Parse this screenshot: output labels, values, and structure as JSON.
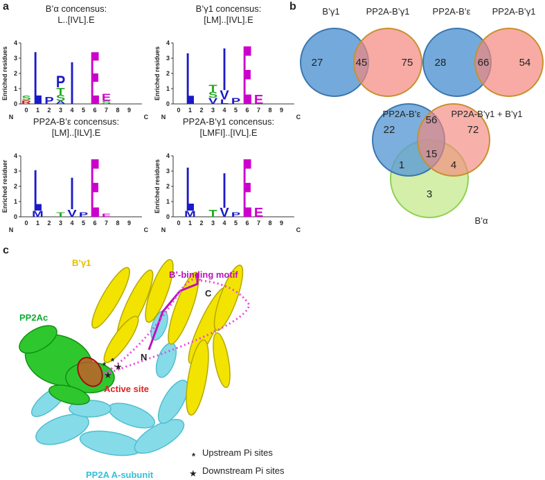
{
  "panel_a": {
    "label": "a",
    "y_ticks": [
      0,
      1,
      2,
      3,
      4
    ],
    "positions": [
      0,
      1,
      2,
      3,
      4,
      5,
      6,
      7,
      8,
      9
    ],
    "n_label": "N",
    "c_label": "C",
    "logos": [
      {
        "title": "B’α concensus:",
        "motif": "L..[IVL].E",
        "ylabel": "Enriched residues",
        "letters": [
          {
            "letter": "R",
            "position": 0,
            "height": 0.25,
            "color": "#d02020"
          },
          {
            "letter": "S",
            "position": 0,
            "height": 0.3,
            "color": "#22aa22"
          },
          {
            "letter": "L",
            "position": 1,
            "height": 3.6,
            "color": "#1a1ac8"
          },
          {
            "letter": "P",
            "position": 2,
            "height": 0.5,
            "color": "#1a1ac8"
          },
          {
            "letter": "A",
            "position": 3,
            "height": 0.2,
            "color": "#1a1ac8"
          },
          {
            "letter": "S",
            "position": 3,
            "height": 0.4,
            "color": "#22aa22"
          },
          {
            "letter": "T",
            "position": 3,
            "height": 0.5,
            "color": "#22aa22"
          },
          {
            "letter": "P",
            "position": 3,
            "height": 0.8,
            "color": "#1a1ac8"
          },
          {
            "letter": "I",
            "position": 4,
            "height": 2.9,
            "color": "#1a1ac8"
          },
          {
            "letter": "E",
            "position": 6,
            "height": 3.6,
            "color": "#cc00cc"
          },
          {
            "letter": "S",
            "position": 7,
            "height": 0.2,
            "color": "#22aa22"
          },
          {
            "letter": "E",
            "position": 7,
            "height": 0.5,
            "color": "#cc00cc"
          }
        ]
      },
      {
        "title": "B’γ1 concensus:",
        "motif": "[LM]..[IVL].E",
        "ylabel": "Enriched residues",
        "letters": [
          {
            "letter": "L",
            "position": 1,
            "height": 3.5,
            "color": "#1a1ac8"
          },
          {
            "letter": "V",
            "position": 3,
            "height": 0.4,
            "color": "#1a1ac8"
          },
          {
            "letter": "S",
            "position": 3,
            "height": 0.4,
            "color": "#22aa22"
          },
          {
            "letter": "T",
            "position": 3,
            "height": 0.5,
            "color": "#22aa22"
          },
          {
            "letter": "L",
            "position": 4,
            "height": 0.3,
            "color": "#1a1ac8"
          },
          {
            "letter": "V",
            "position": 4,
            "height": 0.6,
            "color": "#1a1ac8"
          },
          {
            "letter": "I",
            "position": 4,
            "height": 2.9,
            "color": "#1a1ac8"
          },
          {
            "letter": "P",
            "position": 5,
            "height": 0.4,
            "color": "#1a1ac8"
          },
          {
            "letter": "E",
            "position": 6,
            "height": 4.0,
            "color": "#cc00cc"
          },
          {
            "letter": "E",
            "position": 7,
            "height": 0.6,
            "color": "#cc00cc"
          }
        ]
      },
      {
        "title": "PP2A-B’ε concensus:",
        "motif": "[LM]..[ILV].E",
        "ylabel": "Enriched residuer",
        "letters": [
          {
            "letter": "M",
            "position": 1,
            "height": 0.4,
            "color": "#1a1ac8"
          },
          {
            "letter": "L",
            "position": 1,
            "height": 2.8,
            "color": "#1a1ac8"
          },
          {
            "letter": "T",
            "position": 3,
            "height": 0.3,
            "color": "#22aa22"
          },
          {
            "letter": "V",
            "position": 4,
            "height": 0.5,
            "color": "#1a1ac8"
          },
          {
            "letter": "I",
            "position": 4,
            "height": 2.2,
            "color": "#1a1ac8"
          },
          {
            "letter": "P",
            "position": 5,
            "height": 0.3,
            "color": "#1a1ac8"
          },
          {
            "letter": "E",
            "position": 6,
            "height": 4.0,
            "color": "#cc00cc"
          },
          {
            "letter": "E",
            "position": 7,
            "height": 0.2,
            "color": "#cc00cc"
          }
        ]
      },
      {
        "title": "PP2A-B’γ1 concensus:",
        "motif": "[LMFI]..[IVL].E",
        "ylabel": "Enriched residues",
        "letters": [
          {
            "letter": "M",
            "position": 1,
            "height": 0.4,
            "color": "#1a1ac8"
          },
          {
            "letter": "L",
            "position": 1,
            "height": 3.0,
            "color": "#1a1ac8"
          },
          {
            "letter": "T",
            "position": 3,
            "height": 0.5,
            "color": "#22aa22"
          },
          {
            "letter": "V",
            "position": 4,
            "height": 0.6,
            "color": "#1a1ac8"
          },
          {
            "letter": "I",
            "position": 4,
            "height": 2.4,
            "color": "#1a1ac8"
          },
          {
            "letter": "P",
            "position": 5,
            "height": 0.3,
            "color": "#1a1ac8"
          },
          {
            "letter": "E",
            "position": 6,
            "height": 4.0,
            "color": "#cc00cc"
          },
          {
            "letter": "E",
            "position": 7,
            "height": 0.6,
            "color": "#cc00cc"
          }
        ]
      }
    ]
  },
  "panel_b": {
    "label": "b",
    "venn1": {
      "left": "B’γ1",
      "right": "PP2A-B’γ1",
      "counts": [
        27,
        45,
        75
      ]
    },
    "venn2": {
      "left": "PP2A-B’ε",
      "right": "PP2A-B’γ1",
      "counts": [
        28,
        66,
        54
      ]
    },
    "venn3": {
      "left": "PP2A-B’ε",
      "right": "PP2A-B’γ1 + B’γ1",
      "bottom": "B’α",
      "counts": [
        22,
        56,
        72,
        1,
        15,
        4,
        3
      ]
    }
  },
  "panel_c": {
    "label": "c",
    "b_gamma": "B’γ1",
    "motif": "B’-binding motif",
    "c_term": "C",
    "n_term": "N",
    "pp2ac": "PP2Ac",
    "active_site": "Active site",
    "a_subunit": "PP2A A-subunit",
    "legend": {
      "upstream": "Upstream Pi sites",
      "downstream": "Downstream Pi sites"
    }
  }
}
